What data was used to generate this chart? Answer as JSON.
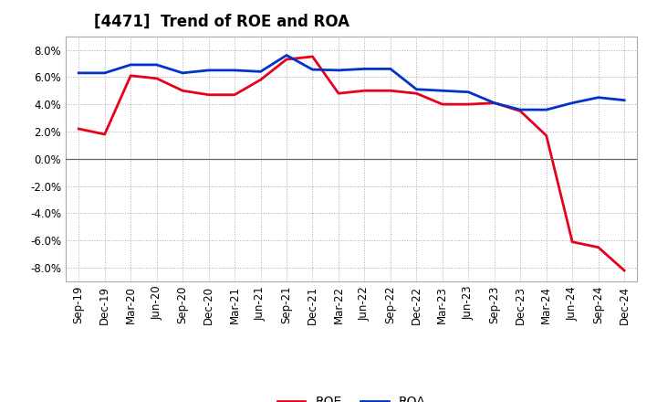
{
  "title": "[4471]  Trend of ROE and ROA",
  "x_labels": [
    "Sep-19",
    "Dec-19",
    "Mar-20",
    "Jun-20",
    "Sep-20",
    "Dec-20",
    "Mar-21",
    "Jun-21",
    "Sep-21",
    "Dec-21",
    "Mar-22",
    "Jun-22",
    "Sep-22",
    "Dec-22",
    "Mar-23",
    "Jun-23",
    "Sep-23",
    "Dec-23",
    "Mar-24",
    "Jun-24",
    "Sep-24",
    "Dec-24"
  ],
  "roe": [
    2.2,
    1.8,
    6.1,
    5.9,
    5.0,
    4.7,
    4.7,
    5.8,
    7.3,
    7.5,
    4.8,
    5.0,
    5.0,
    4.8,
    4.0,
    4.0,
    4.1,
    3.5,
    1.7,
    -6.1,
    -6.5,
    -8.2
  ],
  "roa": [
    6.3,
    6.3,
    6.9,
    6.9,
    6.3,
    6.5,
    6.5,
    6.4,
    7.6,
    6.55,
    6.5,
    6.6,
    6.6,
    5.1,
    5.0,
    4.9,
    4.1,
    3.6,
    3.6,
    4.1,
    4.5,
    4.3
  ],
  "roe_color": "#e8001c",
  "roa_color": "#0033cc",
  "background_color": "#ffffff",
  "grid_color": "#aaaaaa",
  "ylim": [
    -9.0,
    9.0
  ],
  "yticks": [
    -8.0,
    -6.0,
    -4.0,
    -2.0,
    0.0,
    2.0,
    4.0,
    6.0,
    8.0
  ],
  "line_width": 2.0,
  "legend_roe": "ROE",
  "legend_roa": "ROA",
  "title_fontsize": 12,
  "tick_fontsize": 8.5
}
